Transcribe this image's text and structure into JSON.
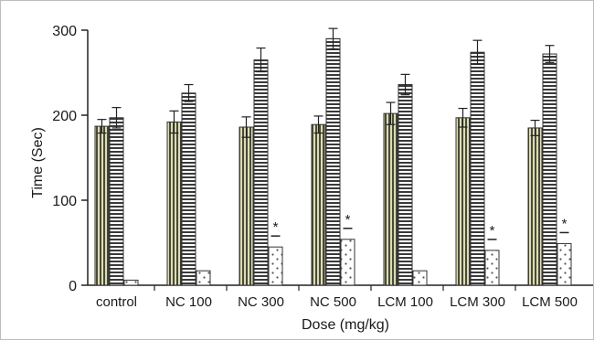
{
  "chart_data": {
    "type": "bar",
    "title": "",
    "xlabel": "Dose (mg/kg)",
    "ylabel": "Time (Sec)",
    "ylim": [
      0,
      300
    ],
    "yticks": [
      0,
      100,
      200,
      300
    ],
    "grid": false,
    "legend": "none",
    "categories": [
      "control",
      "NC 100",
      "NC 300",
      "NC 500",
      "LCM 100",
      "LCM 300",
      "LCM 500"
    ],
    "series": [
      {
        "pattern": "vertical-stripes",
        "color": "#c8c8a0",
        "values": [
          187,
          192,
          186,
          189,
          202,
          197,
          185
        ],
        "errors": [
          8,
          13,
          12,
          10,
          13,
          11,
          9
        ]
      },
      {
        "pattern": "horizontal-stripes",
        "color": "#ffffff",
        "values": [
          197,
          226,
          265,
          290,
          236,
          274,
          272
        ],
        "errors": [
          12,
          10,
          14,
          12,
          12,
          14,
          10
        ]
      },
      {
        "pattern": "dots",
        "color": "#ffffff",
        "values": [
          6,
          17,
          45,
          54,
          17,
          41,
          49
        ],
        "errors": [
          0,
          0,
          0,
          0,
          0,
          0,
          0
        ]
      }
    ],
    "annotations": [
      {
        "category": "NC 300",
        "series_index": 2,
        "text": "*"
      },
      {
        "category": "NC 500",
        "series_index": 2,
        "text": "*"
      },
      {
        "category": "LCM 300",
        "series_index": 2,
        "text": "*"
      },
      {
        "category": "LCM 500",
        "series_index": 2,
        "text": "*"
      }
    ]
  }
}
